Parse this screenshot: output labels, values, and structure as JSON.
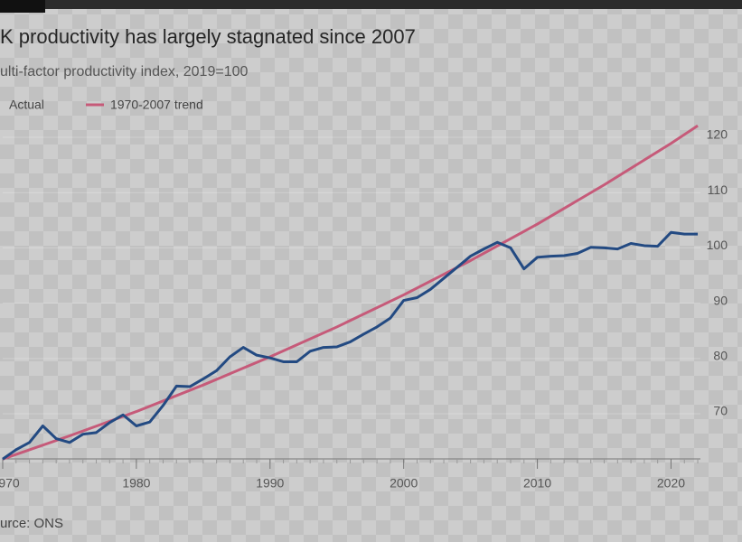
{
  "chart_data": {
    "type": "line",
    "title": "K productivity has largely stagnated since 2007",
    "subtitle": "ulti-factor productivity index, 2019=100",
    "source": "urce: ONS",
    "x": [
      1970,
      1971,
      1972,
      1973,
      1974,
      1975,
      1976,
      1977,
      1978,
      1979,
      1980,
      1981,
      1982,
      1983,
      1984,
      1985,
      1986,
      1987,
      1988,
      1989,
      1990,
      1991,
      1992,
      1993,
      1994,
      1995,
      1996,
      1997,
      1998,
      1999,
      2000,
      2001,
      2002,
      2003,
      2004,
      2005,
      2006,
      2007,
      2008,
      2009,
      2010,
      2011,
      2012,
      2013,
      2014,
      2015,
      2016,
      2017,
      2018,
      2019,
      2020,
      2021,
      2022
    ],
    "series": [
      {
        "name": "Actual",
        "color": "#234a82",
        "values": [
          61.8,
          63.5,
          64.8,
          67.8,
          65.5,
          64.8,
          66.3,
          66.6,
          68.4,
          69.8,
          67.8,
          68.5,
          71.5,
          75.0,
          74.9,
          76.3,
          77.8,
          80.3,
          82.0,
          80.6,
          80.1,
          79.4,
          79.4,
          81.3,
          82.0,
          82.1,
          83.0,
          84.4,
          85.7,
          87.3,
          90.5,
          91.0,
          92.5,
          94.5,
          96.5,
          98.5,
          99.8,
          101.0,
          100.0,
          96.2,
          98.3,
          98.5,
          98.6,
          99.0,
          100.1,
          100.0,
          99.8,
          100.8,
          100.4,
          100.3,
          102.8,
          102.5,
          102.5
        ]
      },
      {
        "name": "1970-2007 trend",
        "color": "#c65a79",
        "x": [
          1970,
          1975,
          1980,
          1985,
          1990,
          1995,
          2000,
          2005,
          2010,
          2015,
          2020,
          2022
        ],
        "values": [
          61.8,
          66.0,
          70.4,
          75.2,
          80.3,
          85.7,
          91.5,
          97.7,
          104.3,
          111.4,
          118.9,
          122.1
        ]
      }
    ],
    "xlim": [
      1970,
      2022.2
    ],
    "xticks": [
      {
        "value": 1970,
        "label": "970"
      },
      1980,
      1990,
      2000,
      2010,
      2020
    ],
    "ylim": [
      62,
      124
    ],
    "yticks": [
      70,
      80,
      90,
      100,
      110,
      120
    ],
    "grid": true
  }
}
